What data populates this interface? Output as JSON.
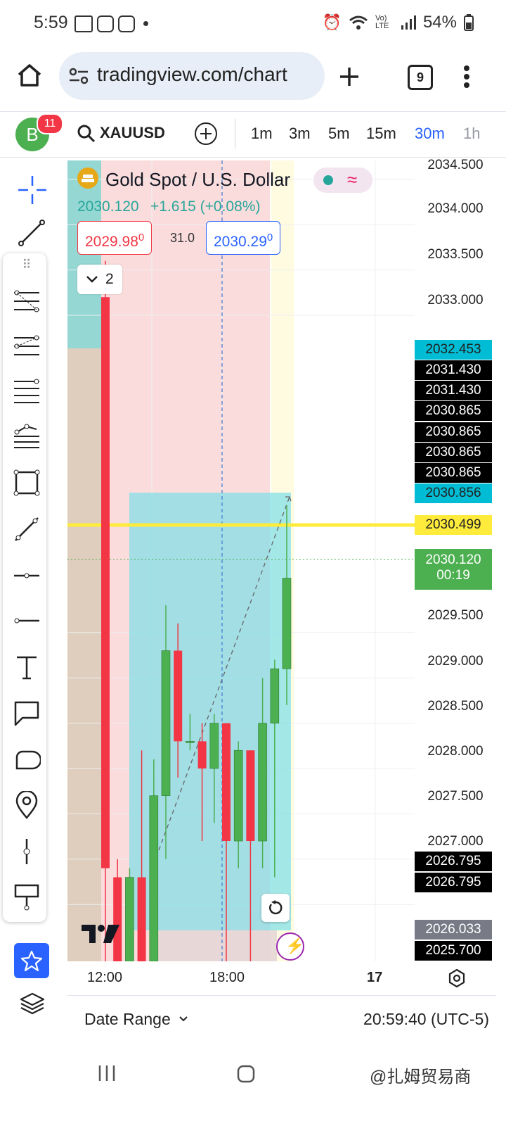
{
  "status_bar": {
    "time": "5:59",
    "battery": "54%",
    "network": "Vo) LTE"
  },
  "browser": {
    "url": "tradingview.com/chart",
    "tab_count": "9"
  },
  "toolbar": {
    "avatar_letter": "B",
    "notification_count": "11",
    "symbol": "XAUUSD",
    "timeframes": [
      "1m",
      "3m",
      "5m",
      "15m",
      "30m",
      "1h"
    ],
    "active_timeframe": "30m"
  },
  "legend": {
    "title": "Gold Spot / U.S. Dollar",
    "price": "2030.120",
    "change": "+1.615 (+0.08%)",
    "bid": "2029.98",
    "bid_sup": "0",
    "spread": "31.0",
    "ask": "2030.29",
    "ask_sup": "0",
    "indicators_collapsed": "2"
  },
  "price_scale": {
    "labels": [
      "2034.500",
      "2034.000",
      "2033.500",
      "2033.000",
      "2029.500",
      "2029.000",
      "2028.500",
      "2028.000",
      "2027.500",
      "2027.000"
    ],
    "tags": [
      {
        "value": "2032.453",
        "style": "cyan"
      },
      {
        "value": "2031.430",
        "style": "black"
      },
      {
        "value": "2031.430",
        "style": "black"
      },
      {
        "value": "2030.865",
        "style": "black"
      },
      {
        "value": "2030.865",
        "style": "black"
      },
      {
        "value": "2030.865",
        "style": "black"
      },
      {
        "value": "2030.865",
        "style": "black"
      },
      {
        "value": "2030.856",
        "style": "cyan"
      },
      {
        "value": "2030.499",
        "style": "yellow"
      },
      {
        "value": "2026.795",
        "style": "black"
      },
      {
        "value": "2026.795",
        "style": "black"
      },
      {
        "value": "2026.033",
        "style": "grey"
      },
      {
        "value": "2025.700",
        "style": "black"
      }
    ],
    "current_price": "2030.120",
    "countdown": "00:19"
  },
  "time_scale": {
    "labels": [
      "12:00",
      "18:00",
      "17"
    ]
  },
  "bottom_bar": {
    "date_range": "Date Range",
    "clock": "20:59:40 (UTC-5)"
  },
  "watermark": "@扎姆贸易商",
  "colors": {
    "up": "#4caf50",
    "down": "#f23645",
    "accent": "#2962ff",
    "cyan": "#00bcd4",
    "yellow": "#ffeb3b"
  },
  "chart_data": {
    "type": "candlestick",
    "symbol": "XAUUSD",
    "interval": "30m",
    "ylim": [
      2025.5,
      2034.6
    ],
    "candles": [
      {
        "open": 2033.2,
        "high": 2033.6,
        "low": 2025.5,
        "close": 2026.9
      },
      {
        "open": 2026.8,
        "high": 2027.0,
        "low": 2025.5,
        "close": 2025.6
      },
      {
        "open": 2025.6,
        "high": 2026.9,
        "low": 2025.5,
        "close": 2026.8
      },
      {
        "open": 2026.8,
        "high": 2028.2,
        "low": 2025.5,
        "close": 2025.6
      },
      {
        "open": 2025.6,
        "high": 2028.1,
        "low": 2025.5,
        "close": 2027.7
      },
      {
        "open": 2027.7,
        "high": 2029.8,
        "low": 2027.0,
        "close": 2029.3
      },
      {
        "open": 2029.3,
        "high": 2029.6,
        "low": 2027.9,
        "close": 2028.3
      },
      {
        "open": 2028.3,
        "high": 2028.6,
        "low": 2028.2,
        "close": 2028.3
      },
      {
        "open": 2028.3,
        "high": 2028.5,
        "low": 2027.2,
        "close": 2028.0
      },
      {
        "open": 2028.0,
        "high": 2028.6,
        "low": 2027.4,
        "close": 2028.5
      },
      {
        "open": 2028.5,
        "high": 2028.5,
        "low": 2025.8,
        "close": 2027.2
      },
      {
        "open": 2027.2,
        "high": 2028.3,
        "low": 2026.9,
        "close": 2028.2
      },
      {
        "open": 2028.2,
        "high": 2028.2,
        "low": 2025.7,
        "close": 2027.2
      },
      {
        "open": 2027.2,
        "high": 2029.0,
        "low": 2026.9,
        "close": 2028.5
      },
      {
        "open": 2028.5,
        "high": 2029.2,
        "low": 2026.8,
        "close": 2029.1
      },
      {
        "open": 2029.1,
        "high": 2030.9,
        "low": 2028.7,
        "close": 2030.1
      }
    ]
  }
}
